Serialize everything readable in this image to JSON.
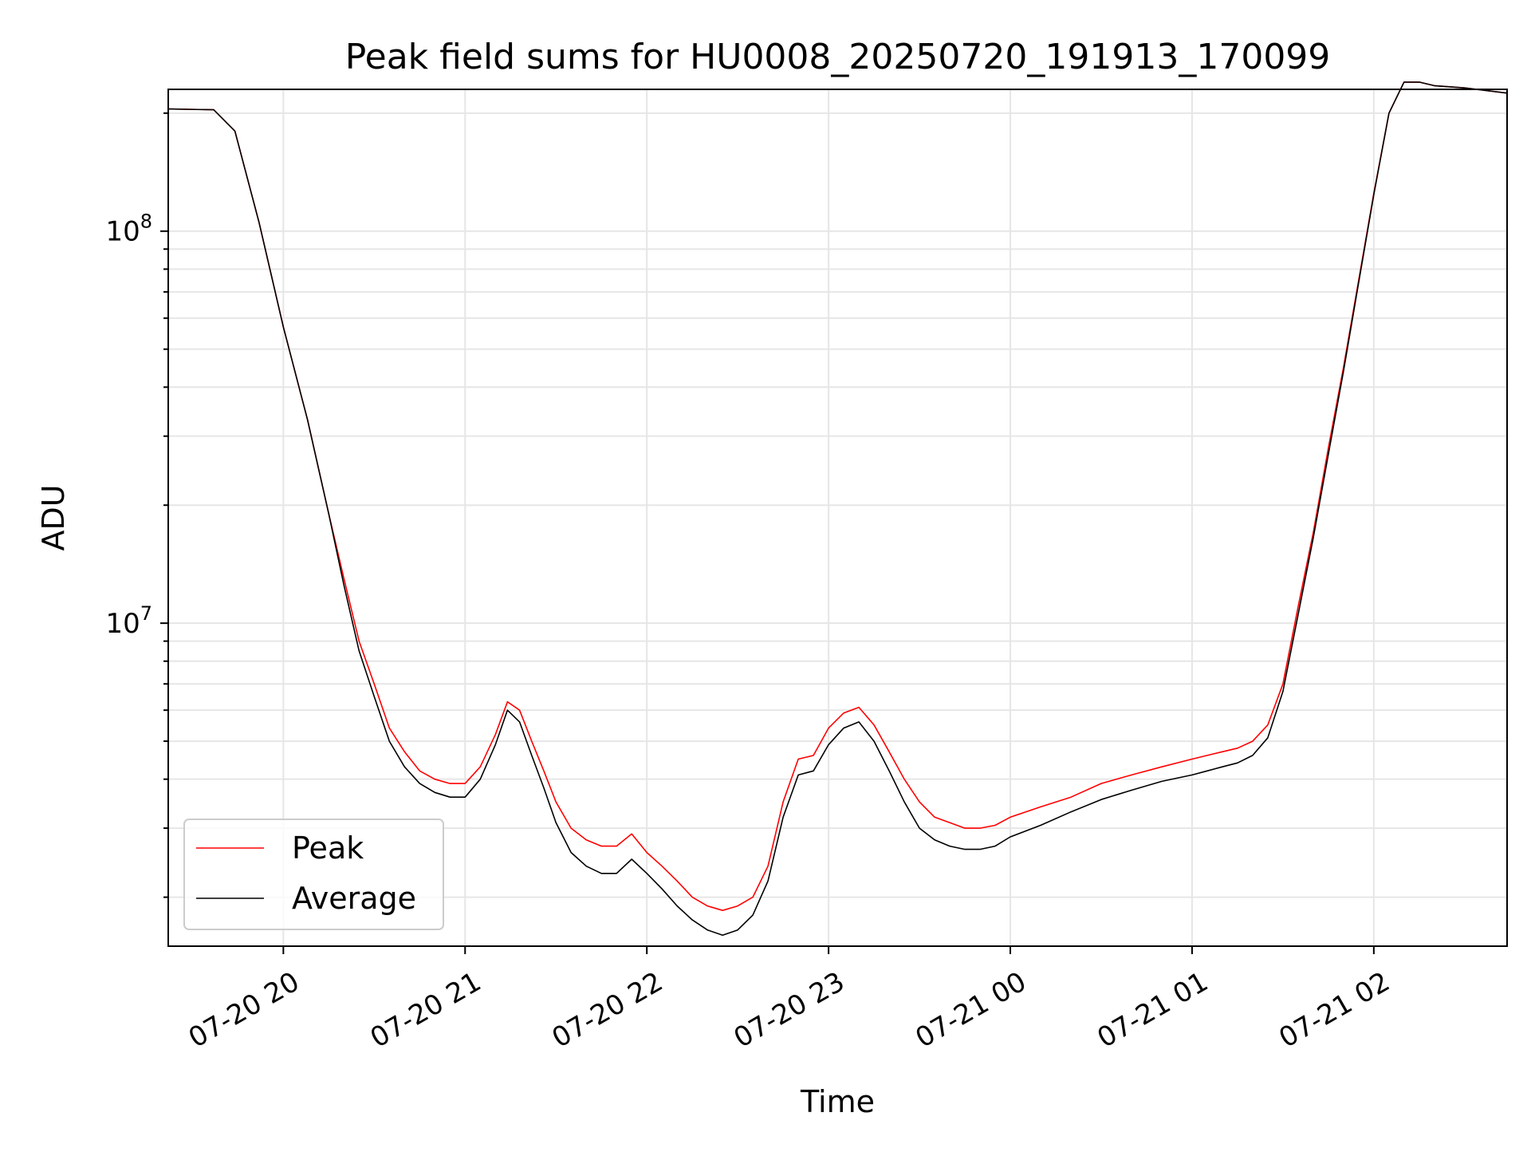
{
  "chart_data": {
    "type": "line",
    "title": "Peak field sums for HU0008_20250720_191913_170099",
    "xlabel": "Time",
    "ylabel": "ADU",
    "yscale": "log",
    "grid": true,
    "legend_position": "lower-left",
    "xlim": [
      "2025-07-20 19:22",
      "2025-07-21 02:44"
    ],
    "ylim": [
      1500000,
      230000000
    ],
    "x_ticks": [
      {
        "value": "2025-07-20 20:00",
        "label": "07-20 20"
      },
      {
        "value": "2025-07-20 21:00",
        "label": "07-20 21"
      },
      {
        "value": "2025-07-20 22:00",
        "label": "07-20 22"
      },
      {
        "value": "2025-07-20 23:00",
        "label": "07-20 23"
      },
      {
        "value": "2025-07-21 00:00",
        "label": "07-21 00"
      },
      {
        "value": "2025-07-21 01:00",
        "label": "07-21 01"
      },
      {
        "value": "2025-07-21 02:00",
        "label": "07-21 02"
      }
    ],
    "y_ticks": [
      {
        "value": 10000000,
        "base": "10",
        "exp": "7"
      },
      {
        "value": 100000000,
        "base": "10",
        "exp": "8"
      }
    ],
    "x": [
      "2025-07-20 19:22",
      "2025-07-20 19:37",
      "2025-07-20 19:44",
      "2025-07-20 19:52",
      "2025-07-20 20:00",
      "2025-07-20 20:08",
      "2025-07-20 20:15",
      "2025-07-20 20:20",
      "2025-07-20 20:25",
      "2025-07-20 20:30",
      "2025-07-20 20:35",
      "2025-07-20 20:40",
      "2025-07-20 20:45",
      "2025-07-20 20:50",
      "2025-07-20 20:55",
      "2025-07-20 21:00",
      "2025-07-20 21:05",
      "2025-07-20 21:10",
      "2025-07-20 21:14",
      "2025-07-20 21:18",
      "2025-07-20 21:22",
      "2025-07-20 21:26",
      "2025-07-20 21:30",
      "2025-07-20 21:35",
      "2025-07-20 21:40",
      "2025-07-20 21:45",
      "2025-07-20 21:50",
      "2025-07-20 21:55",
      "2025-07-20 22:00",
      "2025-07-20 22:05",
      "2025-07-20 22:10",
      "2025-07-20 22:15",
      "2025-07-20 22:20",
      "2025-07-20 22:25",
      "2025-07-20 22:30",
      "2025-07-20 22:35",
      "2025-07-20 22:40",
      "2025-07-20 22:45",
      "2025-07-20 22:50",
      "2025-07-20 22:55",
      "2025-07-20 23:00",
      "2025-07-20 23:05",
      "2025-07-20 23:10",
      "2025-07-20 23:15",
      "2025-07-20 23:20",
      "2025-07-20 23:25",
      "2025-07-20 23:30",
      "2025-07-20 23:35",
      "2025-07-20 23:40",
      "2025-07-20 23:45",
      "2025-07-20 23:50",
      "2025-07-20 23:55",
      "2025-07-21 00:00",
      "2025-07-21 00:10",
      "2025-07-21 00:20",
      "2025-07-21 00:30",
      "2025-07-21 00:40",
      "2025-07-21 00:50",
      "2025-07-21 01:00",
      "2025-07-21 01:05",
      "2025-07-21 01:10",
      "2025-07-21 01:15",
      "2025-07-21 01:20",
      "2025-07-21 01:25",
      "2025-07-21 01:30",
      "2025-07-21 01:35",
      "2025-07-21 01:40",
      "2025-07-21 01:45",
      "2025-07-21 01:50",
      "2025-07-21 01:55",
      "2025-07-21 02:00",
      "2025-07-21 02:05",
      "2025-07-21 02:10",
      "2025-07-21 02:15",
      "2025-07-21 02:20",
      "2025-07-21 02:30",
      "2025-07-21 02:44"
    ],
    "series": [
      {
        "name": "Peak",
        "color": "#ff0000",
        "values": [
          205000000,
          204000000,
          180000000,
          105000000,
          57000000,
          33000000,
          19000000,
          13000000,
          9000000,
          7000000,
          5400000,
          4700000,
          4200000,
          4000000,
          3900000,
          3900000,
          4300000,
          5200000,
          6300000,
          6000000,
          5000000,
          4200000,
          3500000,
          3000000,
          2800000,
          2700000,
          2700000,
          2900000,
          2600000,
          2400000,
          2200000,
          2000000,
          1900000,
          1850000,
          1900000,
          2000000,
          2400000,
          3500000,
          4500000,
          4600000,
          5400000,
          5900000,
          6100000,
          5500000,
          4700000,
          4000000,
          3500000,
          3200000,
          3100000,
          3000000,
          3000000,
          3050000,
          3200000,
          3400000,
          3600000,
          3900000,
          4100000,
          4300000,
          4500000,
          4600000,
          4700000,
          4800000,
          5000000,
          5500000,
          7000000,
          11000000,
          17000000,
          28000000,
          45000000,
          75000000,
          125000000,
          200000000,
          240000000,
          240000000,
          235000000,
          232000000,
          225000000
        ]
      },
      {
        "name": "Average",
        "color": "#000000",
        "values": [
          205000000,
          204000000,
          180000000,
          105000000,
          57000000,
          33000000,
          19000000,
          12500000,
          8500000,
          6500000,
          5000000,
          4300000,
          3900000,
          3700000,
          3600000,
          3600000,
          4000000,
          4900000,
          6000000,
          5600000,
          4600000,
          3800000,
          3100000,
          2600000,
          2400000,
          2300000,
          2300000,
          2500000,
          2300000,
          2100000,
          1900000,
          1750000,
          1650000,
          1600000,
          1650000,
          1800000,
          2200000,
          3200000,
          4100000,
          4200000,
          4900000,
          5400000,
          5600000,
          5000000,
          4200000,
          3500000,
          3000000,
          2800000,
          2700000,
          2650000,
          2650000,
          2700000,
          2850000,
          3050000,
          3300000,
          3550000,
          3750000,
          3950000,
          4100000,
          4200000,
          4300000,
          4400000,
          4600000,
          5100000,
          6700000,
          10500000,
          16500000,
          27000000,
          44000000,
          74000000,
          124000000,
          200000000,
          240000000,
          240000000,
          235000000,
          232000000,
          225000000
        ]
      }
    ]
  }
}
